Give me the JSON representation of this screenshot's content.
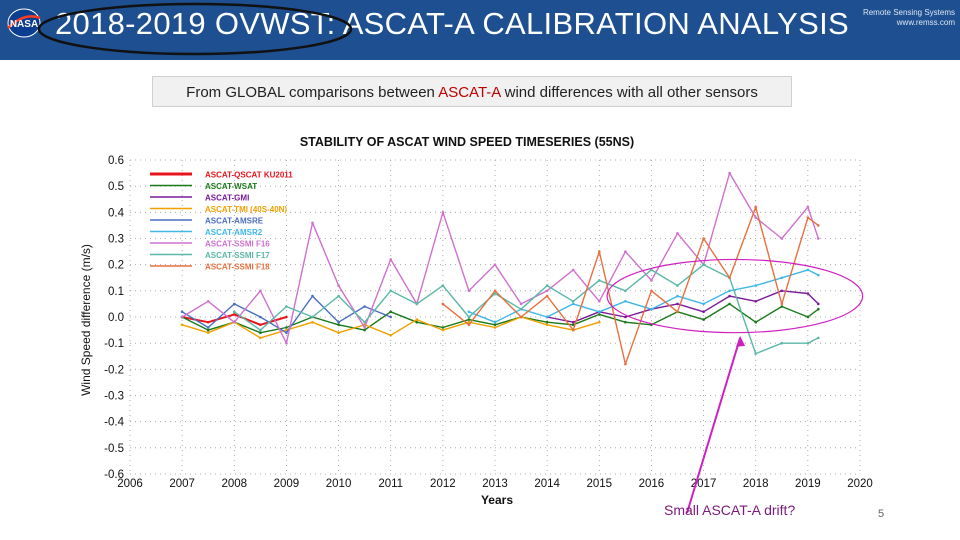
{
  "header": {
    "title": "2018-2019 OVWST: ASCAT-A CALIBRATION ANALYSIS",
    "logo_left": "NASA",
    "logo_right_line1": "Remote Sensing Systems",
    "logo_right_line2": "www.remss.com"
  },
  "subtitle": {
    "prefix": "From GLOBAL comparisons between ",
    "highlight": "ASCAT-A",
    "suffix": " wind differences with all other sensors"
  },
  "annotation": {
    "label": "Small ASCAT-A drift?"
  },
  "page_number": "5",
  "colors": {
    "header_bg": "#1d4f91",
    "annotation": "#d020c0"
  },
  "chart_data": {
    "type": "line",
    "title": "STABILITY OF ASCAT WIND SPEED TIMESERIES (55NS)",
    "xlabel": "Years",
    "ylabel": "Wind Speed difference (m/s)",
    "xlim": [
      2006,
      2020
    ],
    "ylim": [
      -0.6,
      0.6
    ],
    "x_ticks": [
      "2006",
      "2007",
      "2008",
      "2009",
      "2010",
      "2011",
      "2012",
      "2013",
      "2014",
      "2015",
      "2016",
      "2017",
      "2018",
      "2019",
      "2020"
    ],
    "y_ticks": [
      "0.6",
      "0.5",
      "0.4",
      "0.3",
      "0.2",
      "0.1",
      "0.0",
      "-0.1",
      "-0.2",
      "-0.3",
      "-0.4",
      "-0.5",
      "-0.6"
    ],
    "x": [
      2007.0,
      2007.5,
      2008.0,
      2008.5,
      2009.0,
      2009.5,
      2010.0,
      2010.5,
      2011.0,
      2011.5,
      2012.0,
      2012.5,
      2013.0,
      2013.5,
      2014.0,
      2014.5,
      2015.0,
      2015.5,
      2016.0,
      2016.5,
      2017.0,
      2017.5,
      2018.0,
      2018.5,
      2019.0,
      2019.2
    ],
    "series": [
      {
        "name": "ASCAT-QSCAT KU2011",
        "color": "#e8141c",
        "values": [
          0.0,
          -0.02,
          0.01,
          -0.03,
          0.0,
          null,
          null,
          null,
          null,
          null,
          null,
          null,
          null,
          null,
          null,
          null,
          null,
          null,
          null,
          null,
          null,
          null,
          null,
          null,
          null,
          null
        ]
      },
      {
        "name": "ASCAT-WSAT",
        "color": "#1a7a1a",
        "values": [
          0.0,
          -0.05,
          -0.02,
          -0.06,
          -0.04,
          0.0,
          -0.03,
          -0.05,
          0.02,
          -0.02,
          -0.04,
          -0.01,
          -0.03,
          0.0,
          -0.02,
          -0.03,
          0.01,
          -0.02,
          -0.03,
          0.02,
          -0.01,
          0.05,
          -0.02,
          0.04,
          0.0,
          0.03
        ]
      },
      {
        "name": "ASCAT-GMI",
        "color": "#7a1a9a",
        "values": [
          null,
          null,
          null,
          null,
          null,
          null,
          null,
          null,
          null,
          null,
          null,
          null,
          null,
          null,
          0.0,
          -0.02,
          0.02,
          0.0,
          0.03,
          0.05,
          0.02,
          0.08,
          0.06,
          0.1,
          0.09,
          0.05
        ]
      },
      {
        "name": "ASCAT-TMI (40S-40N)",
        "color": "#f0a000",
        "values": [
          -0.03,
          -0.06,
          -0.02,
          -0.08,
          -0.05,
          -0.02,
          -0.06,
          -0.03,
          -0.07,
          -0.01,
          -0.05,
          -0.02,
          -0.04,
          0.0,
          -0.03,
          -0.05,
          -0.02,
          null,
          null,
          null,
          null,
          null,
          null,
          null,
          null,
          null
        ]
      },
      {
        "name": "ASCAT-AMSRE",
        "color": "#4a6fc0",
        "values": [
          0.02,
          -0.04,
          0.05,
          0.0,
          -0.06,
          0.08,
          -0.02,
          0.04,
          0.0,
          null,
          null,
          null,
          null,
          null,
          null,
          null,
          null,
          null,
          null,
          null,
          null,
          null,
          null,
          null,
          null,
          null
        ]
      },
      {
        "name": "ASCAT-AMSR2",
        "color": "#3fb8e8",
        "values": [
          null,
          null,
          null,
          null,
          null,
          null,
          null,
          null,
          null,
          null,
          null,
          0.02,
          -0.02,
          0.03,
          0.0,
          0.05,
          0.02,
          0.06,
          0.03,
          0.08,
          0.05,
          0.1,
          0.12,
          0.15,
          0.18,
          0.16
        ]
      },
      {
        "name": "ASCAT-SSMI F16",
        "color": "#d070d0",
        "values": [
          0.0,
          0.06,
          -0.02,
          0.1,
          -0.1,
          0.36,
          0.12,
          -0.04,
          0.22,
          0.05,
          0.4,
          0.1,
          0.2,
          0.05,
          0.1,
          0.18,
          0.06,
          0.25,
          0.14,
          0.32,
          0.2,
          0.55,
          0.38,
          0.3,
          0.42,
          0.3
        ]
      },
      {
        "name": "ASCAT-SSMI F17",
        "color": "#5ab8a8",
        "values": [
          null,
          null,
          0.02,
          -0.05,
          0.04,
          0.0,
          0.08,
          -0.02,
          0.1,
          0.05,
          0.12,
          0.0,
          0.09,
          0.03,
          0.12,
          0.06,
          0.14,
          0.1,
          0.18,
          0.12,
          0.2,
          0.15,
          -0.14,
          -0.1,
          -0.1,
          -0.08
        ]
      },
      {
        "name": "ASCAT-SSMI F18",
        "color": "#e87040",
        "values": [
          null,
          null,
          null,
          null,
          null,
          null,
          null,
          null,
          null,
          null,
          0.05,
          -0.03,
          0.1,
          0.0,
          0.08,
          -0.05,
          0.25,
          -0.18,
          0.1,
          0.02,
          0.3,
          0.15,
          0.42,
          0.05,
          0.38,
          0.35
        ]
      }
    ]
  }
}
